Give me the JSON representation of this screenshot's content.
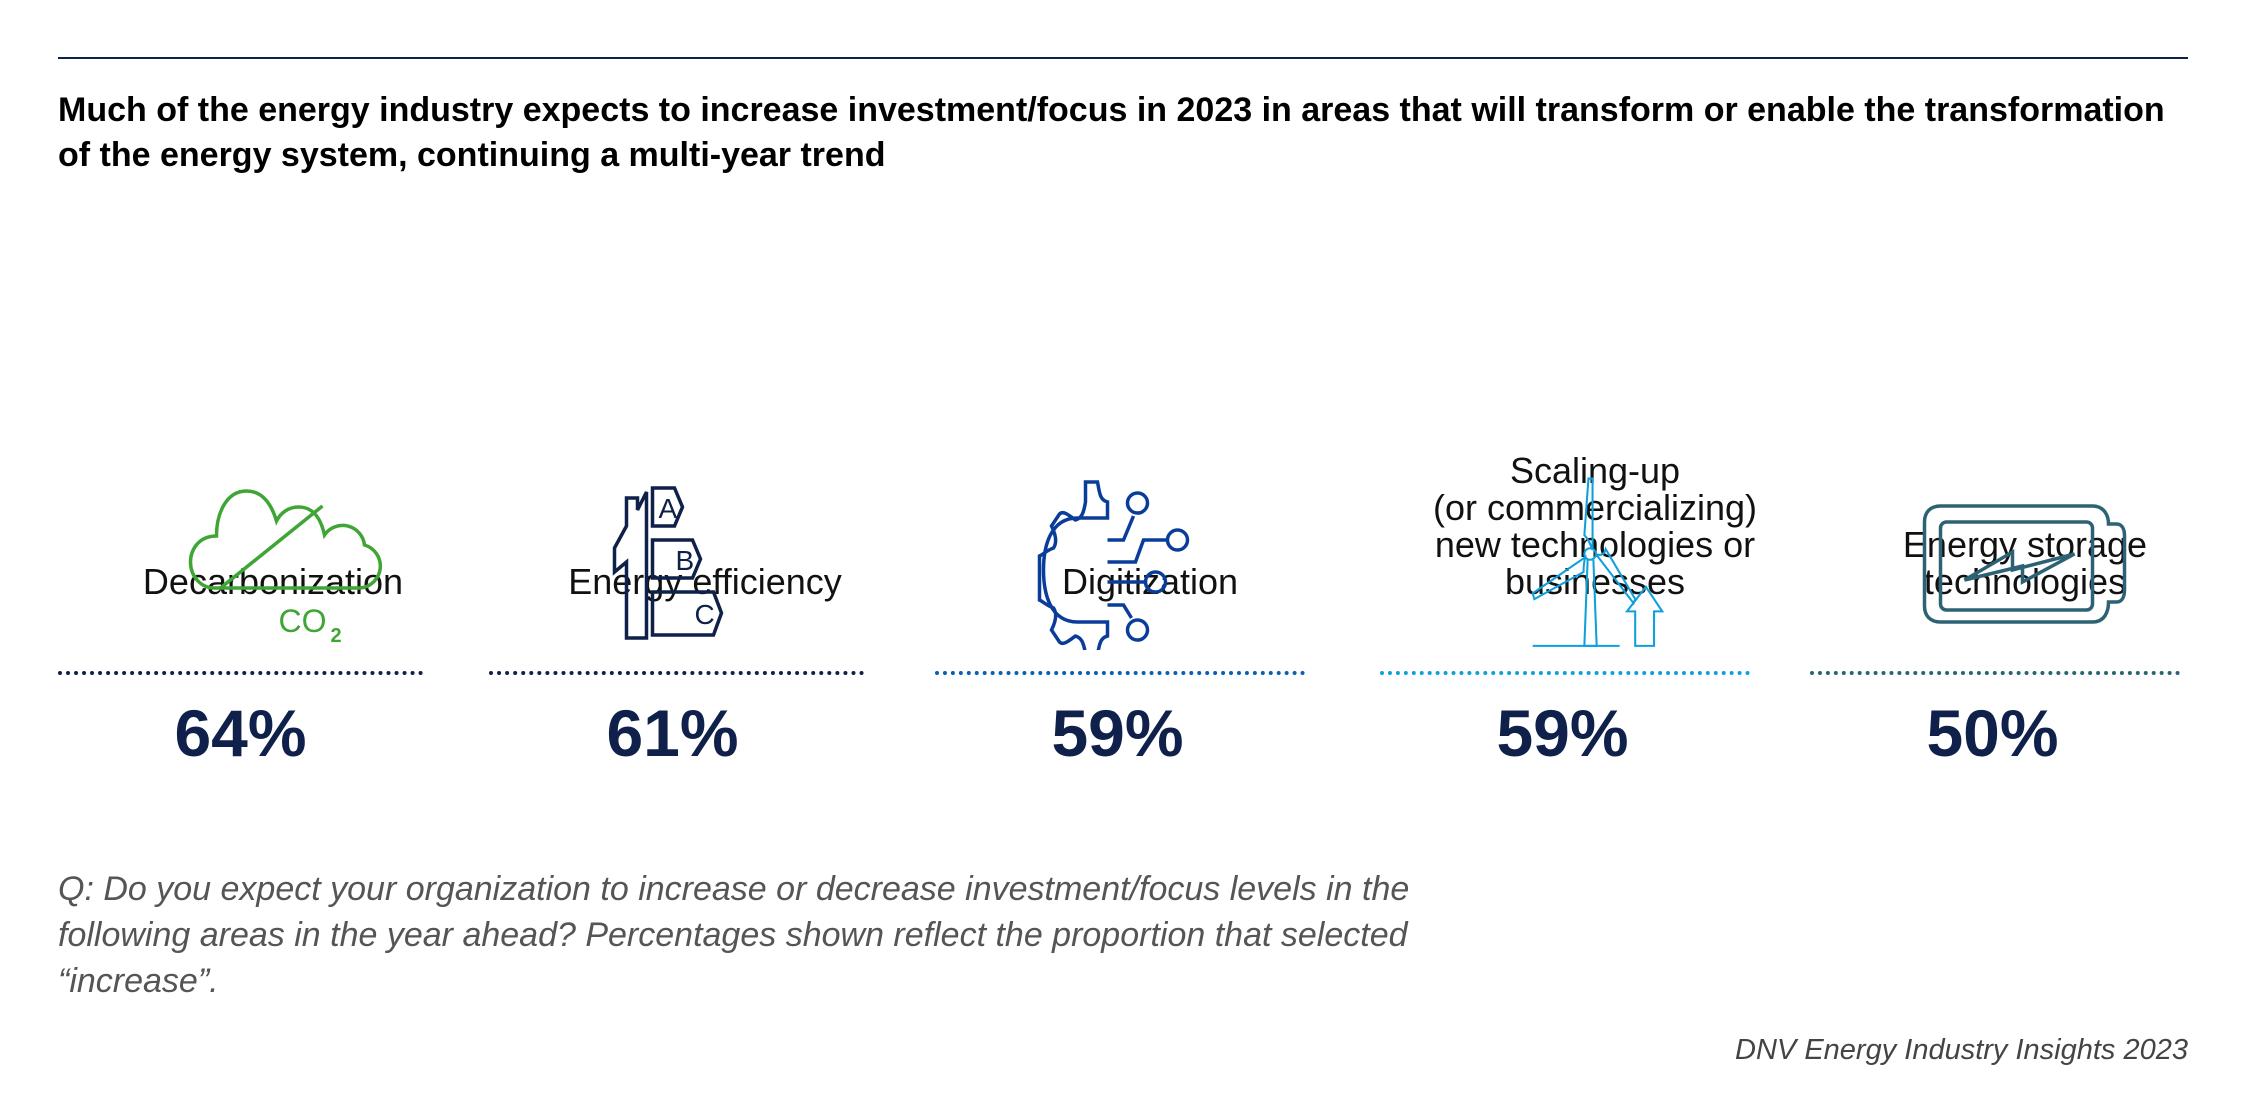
{
  "title": "Much of the energy industry expects to increase investment/focus in 2023 in areas that will transform or enable the transformation of the energy system, continuing a multi-year trend",
  "chart_data": {
    "type": "table",
    "unit": "%",
    "categories": [
      "Decarbonization",
      "Energy efficiency",
      "Digitization",
      "Scaling-up (or commercializing) new technologies or businesses",
      "Energy storage technologies"
    ],
    "values": [
      64,
      61,
      59,
      59,
      50
    ]
  },
  "items": [
    {
      "label_lines": [
        "Decarbonization"
      ],
      "value": "64%",
      "icon": "co2-cloud-icon",
      "color": "#3fa535",
      "icon_text": "CO",
      "icon_sub": "2"
    },
    {
      "label_lines": [
        "Energy efficiency"
      ],
      "value": "61%",
      "icon": "energy-rating-house-icon",
      "color": "#0f204b",
      "icon_text": [
        "A",
        "B",
        "C"
      ]
    },
    {
      "label_lines": [
        "Digitization"
      ],
      "value": "59%",
      "icon": "digital-gear-icon",
      "color": "#0a3d9a"
    },
    {
      "label_lines": [
        "Scaling-up",
        "(or commercializing)",
        "new technologies or",
        "businesses"
      ],
      "value": "59%",
      "icon": "wind-turbine-arrow-icon",
      "color": "#0fa0dc"
    },
    {
      "label_lines": [
        "Energy storage",
        "technologies"
      ],
      "value": "50%",
      "icon": "battery-icon",
      "color": "#2d6275"
    }
  ],
  "footnote": "Q: Do you expect your organization to increase or decrease investment/focus levels in the following areas in the year ahead? Percentages shown reflect the proportion that selected “increase”.",
  "source": "DNV Energy Industry Insights 2023",
  "colors": {
    "value_text": "#0f204b",
    "rule": "#0f204b",
    "footnote": "#555555"
  }
}
